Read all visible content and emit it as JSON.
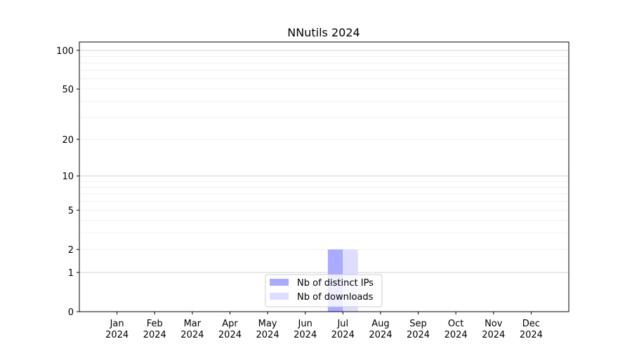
{
  "chart_data": {
    "type": "bar",
    "title": "NNutils 2024",
    "xlabel": "",
    "ylabel": "",
    "yscale": "log(1+y)",
    "ylim": [
      0,
      116
    ],
    "yticks": [
      0,
      1,
      2,
      5,
      10,
      20,
      50,
      100
    ],
    "ytick_labels": [
      "0",
      "1",
      "2",
      "5",
      "10",
      "20",
      "50",
      "100"
    ],
    "grid": true,
    "categories": [
      "Jan\n2024",
      "Feb\n2024",
      "Mar\n2024",
      "Apr\n2024",
      "May\n2024",
      "Jun\n2024",
      "Jul\n2024",
      "Aug\n2024",
      "Sep\n2024",
      "Oct\n2024",
      "Nov\n2024",
      "Dec\n2024"
    ],
    "series": [
      {
        "name": "Nb of distinct IPs",
        "color": "#aaaaff",
        "values": [
          0,
          0,
          0,
          0,
          0,
          0,
          2,
          0,
          0,
          0,
          0,
          0
        ]
      },
      {
        "name": "Nb of downloads",
        "color": "#ddddff",
        "values": [
          0,
          0,
          0,
          0,
          0,
          0,
          2,
          0,
          0,
          0,
          0,
          0
        ]
      }
    ],
    "legend_placement": "lower-center"
  }
}
